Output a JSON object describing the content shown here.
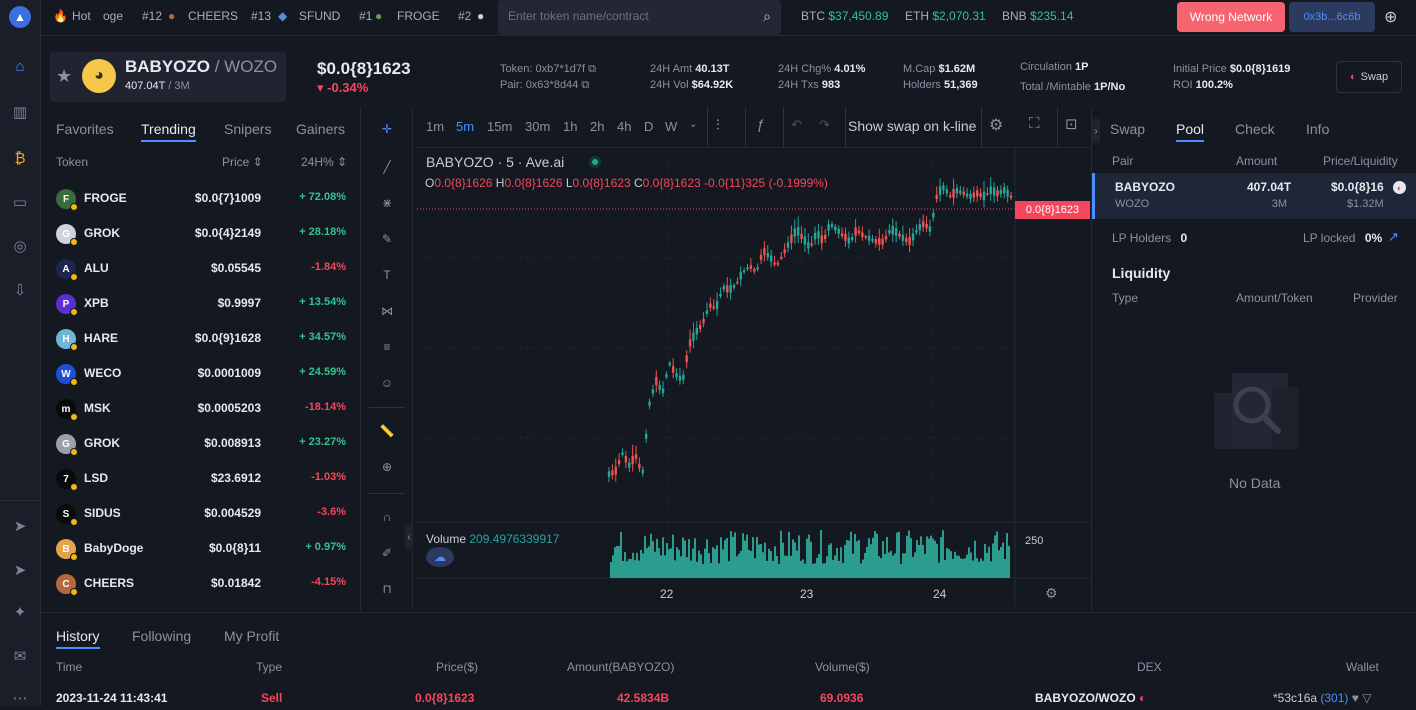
{
  "hot_bar": {
    "label": "Hot",
    "partial": "oge",
    "items": [
      {
        "rank": "#12",
        "name": "CHEERS"
      },
      {
        "rank": "#13",
        "name": "SFUND"
      },
      {
        "rank": "#1",
        "name": "FROGE"
      },
      {
        "rank": "#2",
        "name": ""
      }
    ]
  },
  "search": {
    "placeholder": "Enter token name/contract"
  },
  "tickers": [
    {
      "sym": "BTC",
      "price": "$37,450.89"
    },
    {
      "sym": "ETH",
      "price": "$2,070.31"
    },
    {
      "sym": "BNB",
      "price": "$235.14"
    }
  ],
  "wallet": {
    "wrong_network": "Wrong Network",
    "address": "0x3b...6c6b"
  },
  "token": {
    "name": "BABYOZO",
    "sep": " / ",
    "quote": "WOZO",
    "amount": "407.04T",
    "amount_sep": " / ",
    "amount2": "3M",
    "price": "$0.0{8}1623",
    "change": "-0.34%"
  },
  "stats": {
    "token_label": "Token:",
    "token_val": "0xb7*1d7f",
    "pair_label": "Pair:",
    "pair_val": "0x63*8d44",
    "amt_label": "24H Amt",
    "amt_val": "40.13T",
    "vol_label": "24H Vol",
    "vol_val": "$64.92K",
    "chg_label": "24H Chg%",
    "chg_val": "4.01%",
    "txs_label": "24H Txs",
    "txs_val": "983",
    "mcap_label": "M.Cap",
    "mcap_val": "$1.62M",
    "holders_label": "Holders",
    "holders_val": "51,369",
    "circ_label": "Circulation",
    "circ_val": "1P",
    "total_label": "Total /Mintable",
    "total_val": "1P/No",
    "init_label": "Initial Price",
    "init_val": "$0.0{8}1619",
    "roi_label": "ROI",
    "roi_val": "100.2%",
    "swap_label": "Swap"
  },
  "left_tabs": [
    "Favorites",
    "Trending",
    "Snipers",
    "Gainers"
  ],
  "list_header": {
    "token": "Token",
    "price": "Price",
    "change": "24H%"
  },
  "list": [
    {
      "name": "FROGE",
      "price": "$0.0{7}1009",
      "change": "+ 72.08%",
      "up": true,
      "color": "#3a6b3a",
      "glyph": "F"
    },
    {
      "name": "GROK",
      "price": "$0.0{4}2149",
      "change": "+ 28.18%",
      "up": true,
      "color": "#cfd3dc",
      "glyph": "G"
    },
    {
      "name": "ALU",
      "price": "$0.05545",
      "change": "-1.84%",
      "up": false,
      "color": "#1c2450",
      "glyph": "A"
    },
    {
      "name": "XPB",
      "price": "$0.9997",
      "change": "+ 13.54%",
      "up": true,
      "color": "#5a2fd6",
      "glyph": "P"
    },
    {
      "name": "HARE",
      "price": "$0.0{9}1628",
      "change": "+ 34.57%",
      "up": true,
      "color": "#6fb6d9",
      "glyph": "H"
    },
    {
      "name": "WECO",
      "price": "$0.0001009",
      "change": "+ 24.59%",
      "up": true,
      "color": "#1f4fd8",
      "glyph": "W"
    },
    {
      "name": "MSK",
      "price": "$0.0005203",
      "change": "-18.14%",
      "up": false,
      "color": "#0a0a0a",
      "glyph": "m"
    },
    {
      "name": "GROK",
      "price": "$0.008913",
      "change": "+ 23.27%",
      "up": true,
      "color": "#9aa0aa",
      "glyph": "G"
    },
    {
      "name": "LSD",
      "price": "$23.6912",
      "change": "-1.03%",
      "up": false,
      "color": "#0a0a0a",
      "glyph": "7"
    },
    {
      "name": "SIDUS",
      "price": "$0.004529",
      "change": "-3.6%",
      "up": false,
      "color": "#0a0a0a",
      "glyph": "S"
    },
    {
      "name": "BabyDoge",
      "price": "$0.0{8}11",
      "change": "+ 0.97%",
      "up": true,
      "color": "#e8a34a",
      "glyph": "B"
    },
    {
      "name": "CHEERS",
      "price": "$0.01842",
      "change": "-4.15%",
      "up": false,
      "color": "#b4693a",
      "glyph": "C"
    }
  ],
  "timeframes": [
    "1m",
    "5m",
    "15m",
    "30m",
    "1h",
    "2h",
    "4h",
    "D",
    "W"
  ],
  "active_tf": "5m",
  "chart_toolbar": {
    "swap_kline": "Show swap on k-line"
  },
  "chart": {
    "title": "BABYOZO · 5 · Ave.ai",
    "ohlc": {
      "o": "0.0{8}1626",
      "h": "0.0{8}1626",
      "l": "0.0{8}1623",
      "c": "0.0{8}1623",
      "chg": "-0.0{11}325 (-0.1999%)"
    },
    "price_tag": "0.0{8}1623",
    "volume_label": "Volume",
    "volume_val": "209.4976339917",
    "vol_axis": "250",
    "x_ticks": [
      "22",
      "23",
      "24"
    ]
  },
  "chart_data": {
    "type": "candlestick",
    "title": "BABYOZO · 5 · Ave.ai",
    "xlabel": "",
    "ylabel": "",
    "x_ticks": [
      "22",
      "23",
      "24"
    ],
    "price_path": [
      0.05,
      0.06,
      0.12,
      0.08,
      0.11,
      0.05,
      0.28,
      0.36,
      0.32,
      0.42,
      0.38,
      0.36,
      0.48,
      0.52,
      0.55,
      0.61,
      0.6,
      0.67,
      0.66,
      0.68,
      0.72,
      0.74,
      0.72,
      0.79,
      0.77,
      0.74,
      0.78,
      0.82,
      0.86,
      0.83,
      0.8,
      0.85,
      0.82,
      0.88,
      0.86,
      0.84,
      0.82,
      0.86,
      0.84,
      0.83,
      0.82,
      0.82,
      0.86,
      0.85,
      0.83,
      0.82,
      0.86,
      0.88,
      0.86,
      0.98,
      1.0,
      0.97,
      0.99,
      0.98,
      0.97,
      0.98,
      0.97,
      0.99,
      0.98,
      0.99,
      0.97
    ],
    "last_price": "0.0{8}1623"
  },
  "right_tabs": [
    "Swap",
    "Pool",
    "Check",
    "Info"
  ],
  "pool": {
    "h_pair": "Pair",
    "h_amount": "Amount",
    "h_price": "Price/Liquidity",
    "name1": "BABYOZO",
    "amt1": "407.04T",
    "price1": "$0.0{8}16",
    "name2": "WOZO",
    "amt2": "3M",
    "liq": "$1.32M",
    "lp_holders_label": "LP Holders",
    "lp_holders": "0",
    "lp_locked_label": "LP locked",
    "lp_locked": "0%",
    "liquidity": "Liquidity",
    "h_type": "Type",
    "h_amt_token": "Amount/Token",
    "h_provider": "Provider",
    "no_data": "No Data"
  },
  "bottom_tabs": [
    "History",
    "Following",
    "My Profit"
  ],
  "history_head": {
    "time": "Time",
    "type": "Type",
    "price": "Price($)",
    "amount": "Amount(BABYOZO)",
    "volume": "Volume($)",
    "dex": "DEX",
    "wallet": "Wallet"
  },
  "history_row": {
    "time": "2023-11-24 11:43:41",
    "type": "Sell",
    "price": "0.0{8}1623",
    "amount": "42.5834B",
    "volume": "69.0936",
    "dex": "BABYOZO/WOZO",
    "wallet": "*53c16a",
    "wallet_count": "(301)"
  }
}
